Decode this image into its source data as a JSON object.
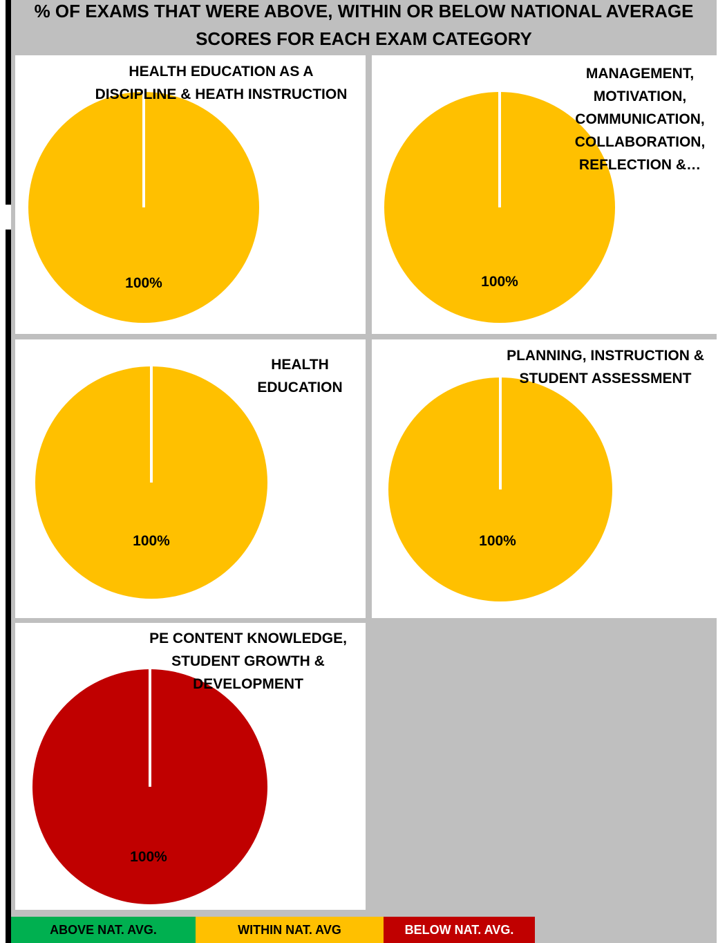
{
  "title_line1": "% OF EXAMS THAT WERE ABOVE, WITHIN OR BELOW NATIONAL AVERAGE",
  "title_line2": "SCORES FOR EACH EXAM CATEGORY",
  "colors": {
    "above": "#00b050",
    "within": "#ffc000",
    "below": "#c00000",
    "background": "#bfbfbf"
  },
  "chart_data": [
    {
      "type": "pie",
      "title_lines": [
        "HEALTH EDUCATION AS A",
        "DISCIPLINE & HEATH INSTRUCTION"
      ],
      "slices": [
        {
          "category": "WITHIN NAT. AVG",
          "value": 100,
          "label": "100%"
        }
      ]
    },
    {
      "type": "pie",
      "title_lines": [
        "MANAGEMENT,",
        "MOTIVATION,",
        "COMMUNICATION,",
        "COLLABORATION,",
        "REFLECTION &…"
      ],
      "slices": [
        {
          "category": "WITHIN NAT. AVG",
          "value": 100,
          "label": "100%"
        }
      ]
    },
    {
      "type": "pie",
      "title_lines": [
        "HEALTH",
        "EDUCATION"
      ],
      "slices": [
        {
          "category": "WITHIN NAT. AVG",
          "value": 100,
          "label": "100%"
        }
      ]
    },
    {
      "type": "pie",
      "title_lines": [
        "PLANNING, INSTRUCTION &",
        "STUDENT ASSESSMENT"
      ],
      "slices": [
        {
          "category": "WITHIN NAT. AVG",
          "value": 100,
          "label": "100%"
        }
      ]
    },
    {
      "type": "pie",
      "title_lines": [
        "PE CONTENT KNOWLEDGE,",
        "STUDENT GROWTH &",
        "DEVELOPMENT"
      ],
      "slices": [
        {
          "category": "BELOW NAT. AVG.",
          "value": 100,
          "label": "100%"
        }
      ]
    }
  ],
  "legend": [
    {
      "label": "ABOVE NAT. AVG.",
      "color": "#00b050"
    },
    {
      "label": "WITHIN NAT. AVG",
      "color": "#ffc000"
    },
    {
      "label": "BELOW NAT. AVG.",
      "color": "#c00000"
    }
  ]
}
